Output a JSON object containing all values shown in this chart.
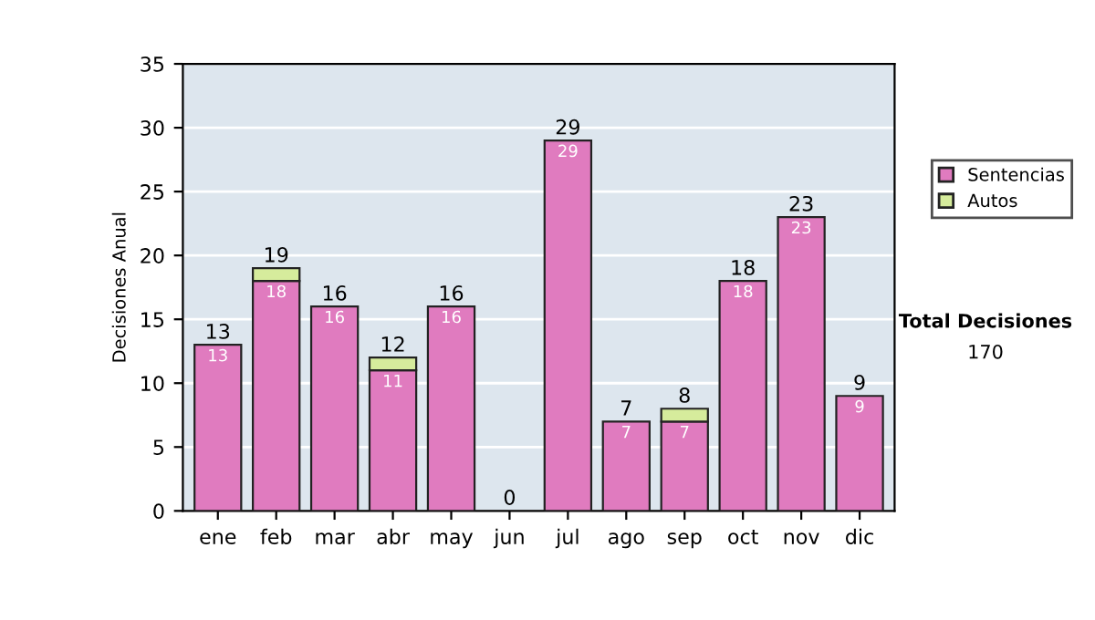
{
  "chart_data": {
    "type": "bar",
    "stacked": true,
    "ylabel": "Decisiones Anual",
    "categories": [
      "ene",
      "feb",
      "mar",
      "abr",
      "may",
      "jun",
      "jul",
      "ago",
      "sep",
      "oct",
      "nov",
      "dic"
    ],
    "series": [
      {
        "name": "Sentencias",
        "color": "#e07bbf",
        "values": [
          13,
          18,
          16,
          11,
          16,
          0,
          29,
          7,
          7,
          18,
          23,
          9
        ],
        "value_labels": [
          "13",
          "18",
          "16",
          "11",
          "16",
          null,
          "29",
          "7",
          "7",
          "18",
          "23",
          "9"
        ]
      },
      {
        "name": "Autos",
        "color": "#d6ec9c",
        "values": [
          0,
          1,
          0,
          1,
          0,
          0,
          0,
          0,
          1,
          0,
          0,
          0
        ]
      }
    ],
    "totals": [
      "13",
      "19",
      "16",
      "12",
      "16",
      "0",
      "29",
      "7",
      "8",
      "18",
      "23",
      "9"
    ],
    "ylim": [
      0,
      35
    ],
    "yticks": [
      0,
      5,
      10,
      15,
      20,
      25,
      30,
      35
    ],
    "grid": "y",
    "legend": "right",
    "annotations": [
      "Total Decisiones",
      "170"
    ]
  }
}
